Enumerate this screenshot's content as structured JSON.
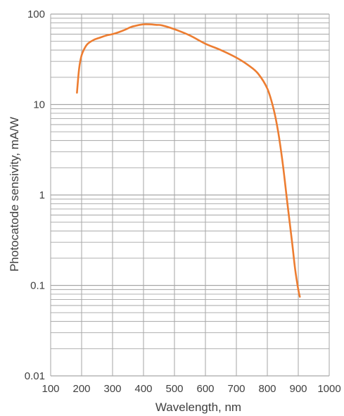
{
  "chart_data": {
    "type": "line",
    "title": "",
    "xlabel": "Wavelength, nm",
    "ylabel": "Photocatode sensivity, mA/W",
    "xlim": [
      100,
      1000
    ],
    "ylim": [
      0.01,
      100
    ],
    "yscale": "log",
    "grid": true,
    "x_ticks": [
      100,
      200,
      300,
      400,
      500,
      600,
      700,
      800,
      900,
      1000
    ],
    "x_tick_labels": [
      "100",
      "200",
      "300",
      "400",
      "500",
      "600",
      "700",
      "800",
      "900",
      "1000"
    ],
    "y_ticks": [
      0.01,
      0.1,
      1,
      10,
      100
    ],
    "y_tick_labels": [
      "0.01",
      "0.1",
      "1",
      "10",
      "100"
    ],
    "series": [
      {
        "color": "#ED7D31",
        "x": [
          185,
          192,
          200,
          210,
          220,
          240,
          260,
          280,
          300,
          320,
          340,
          360,
          380,
          400,
          420,
          440,
          460,
          500,
          550,
          600,
          650,
          700,
          740,
          770,
          800,
          820,
          835,
          850,
          865,
          880,
          890,
          900,
          905
        ],
        "y": [
          13.5,
          25,
          35,
          42,
          47,
          52,
          55,
          58,
          60,
          63,
          67,
          72,
          75,
          77,
          77,
          76,
          75,
          68,
          58,
          47,
          40,
          33,
          27,
          22,
          15,
          9,
          5,
          2.2,
          0.8,
          0.3,
          0.15,
          0.09,
          0.075
        ]
      }
    ]
  }
}
